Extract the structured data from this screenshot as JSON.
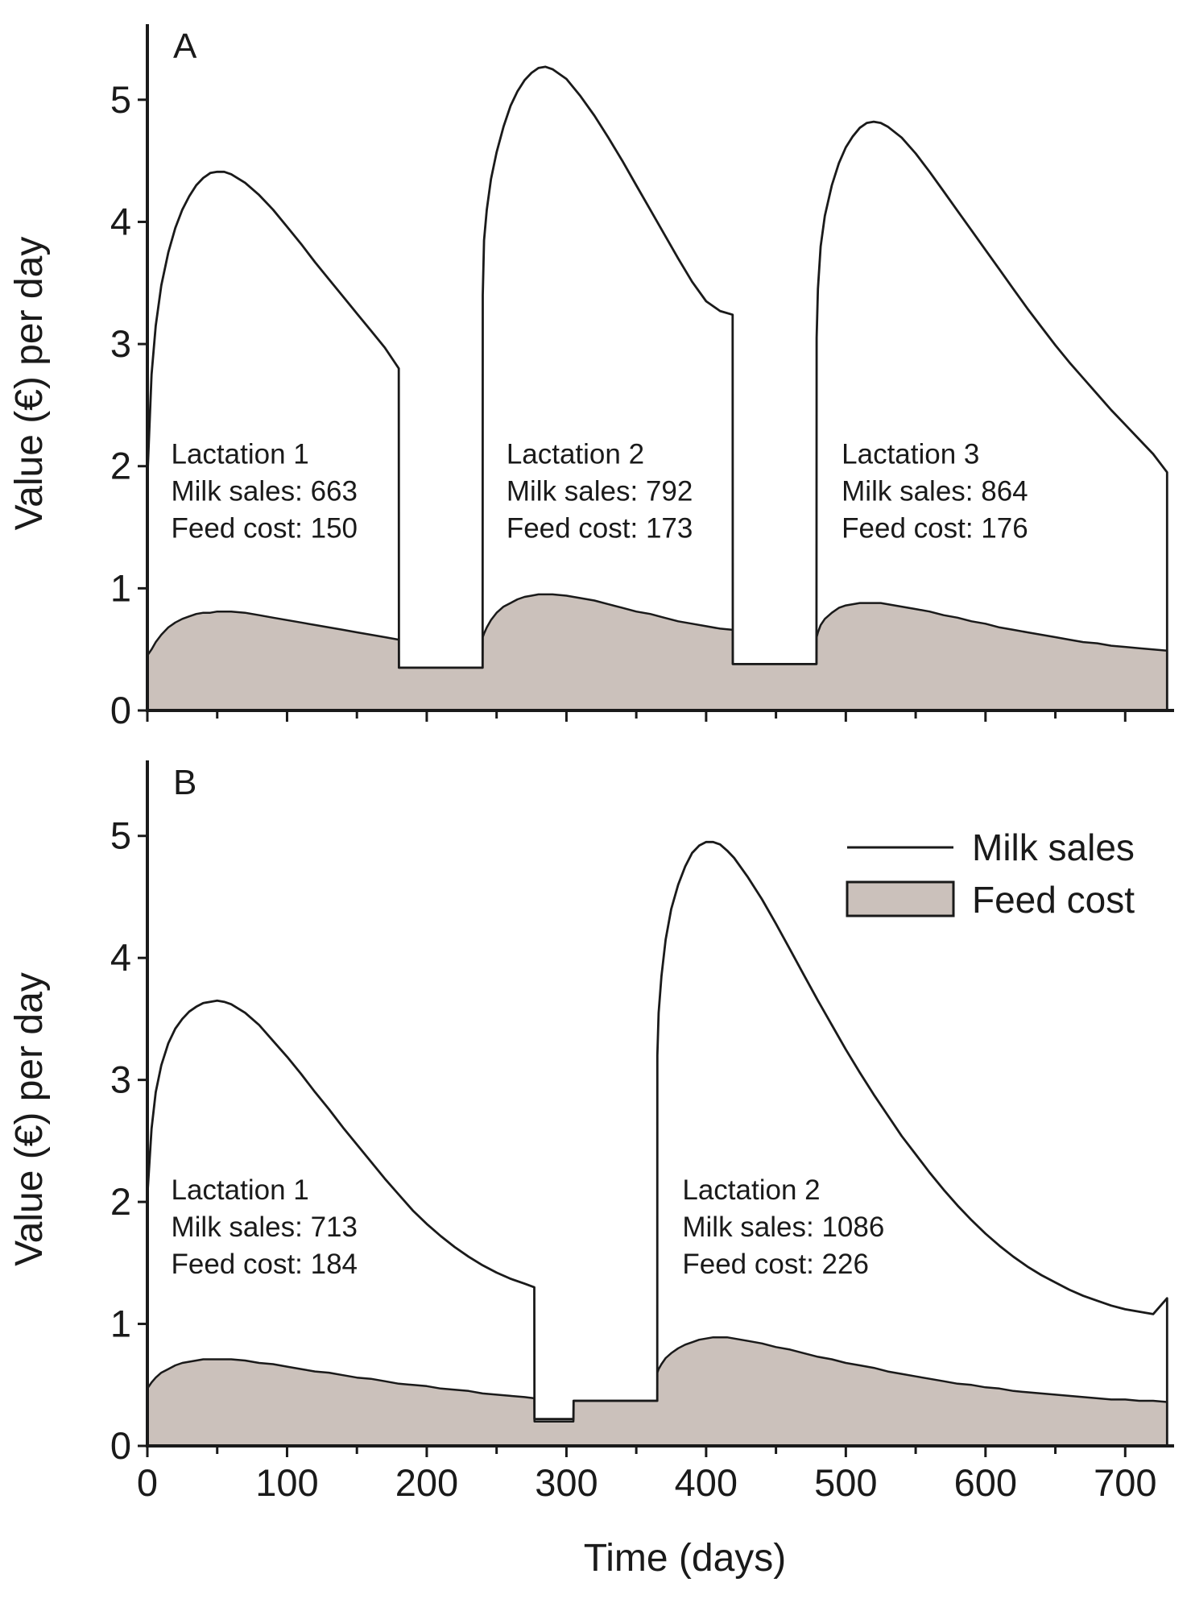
{
  "chart_data": [
    {
      "id": "A",
      "type": "area",
      "panel_label": "A",
      "ylabel": "Value (€) per day",
      "xlabel": "",
      "xlim": [
        0,
        735
      ],
      "ylim": [
        0,
        5.5
      ],
      "y_ticks": [
        "0",
        "1",
        "2",
        "3",
        "4",
        "5"
      ],
      "x_ticks": [
        "0",
        "100",
        "200",
        "300",
        "400",
        "500",
        "600",
        "700"
      ],
      "grid": false,
      "series": [
        {
          "name": "Milk sales",
          "style": "line",
          "x": [
            0,
            3,
            6,
            10,
            15,
            20,
            25,
            30,
            35,
            40,
            45,
            50,
            55,
            60,
            70,
            80,
            90,
            100,
            110,
            120,
            130,
            140,
            150,
            160,
            170,
            180,
            180.1,
            240,
            240.1,
            241,
            243,
            246,
            250,
            255,
            260,
            265,
            270,
            275,
            280,
            285,
            290,
            300,
            310,
            320,
            330,
            340,
            350,
            360,
            370,
            380,
            390,
            400,
            410,
            419,
            419.1,
            479,
            479.1,
            480,
            482,
            485,
            490,
            495,
            500,
            505,
            510,
            515,
            520,
            525,
            530,
            540,
            550,
            560,
            570,
            580,
            590,
            600,
            610,
            620,
            630,
            640,
            650,
            660,
            670,
            680,
            690,
            700,
            710,
            720,
            730
          ],
          "y": [
            1.9,
            2.75,
            3.15,
            3.48,
            3.75,
            3.95,
            4.1,
            4.21,
            4.3,
            4.36,
            4.4,
            4.41,
            4.41,
            4.39,
            4.32,
            4.22,
            4.1,
            3.96,
            3.82,
            3.67,
            3.53,
            3.39,
            3.25,
            3.11,
            2.97,
            2.8,
            0.35,
            0.35,
            3.4,
            3.85,
            4.1,
            4.35,
            4.57,
            4.78,
            4.95,
            5.07,
            5.16,
            5.22,
            5.26,
            5.27,
            5.25,
            5.17,
            5.03,
            4.87,
            4.69,
            4.5,
            4.3,
            4.1,
            3.9,
            3.7,
            3.51,
            3.35,
            3.27,
            3.24,
            0.38,
            0.38,
            3.05,
            3.45,
            3.8,
            4.05,
            4.3,
            4.48,
            4.61,
            4.7,
            4.77,
            4.81,
            4.82,
            4.81,
            4.78,
            4.69,
            4.56,
            4.41,
            4.25,
            4.09,
            3.93,
            3.77,
            3.61,
            3.45,
            3.29,
            3.14,
            2.99,
            2.85,
            2.72,
            2.59,
            2.46,
            2.34,
            2.22,
            2.1,
            1.95
          ]
        },
        {
          "name": "Feed cost",
          "style": "area",
          "fill": "#cbc1bb",
          "x": [
            0,
            3,
            6,
            10,
            15,
            20,
            25,
            30,
            35,
            40,
            45,
            50,
            55,
            60,
            70,
            80,
            90,
            100,
            110,
            120,
            130,
            140,
            150,
            160,
            170,
            180,
            180.1,
            240,
            240.1,
            241,
            243,
            246,
            250,
            255,
            260,
            265,
            270,
            275,
            280,
            285,
            290,
            300,
            310,
            320,
            330,
            340,
            350,
            360,
            370,
            380,
            390,
            400,
            410,
            419,
            419.1,
            479,
            479.1,
            480,
            482,
            485,
            490,
            495,
            500,
            505,
            510,
            515,
            520,
            525,
            530,
            540,
            550,
            560,
            570,
            580,
            590,
            600,
            610,
            620,
            630,
            640,
            650,
            660,
            670,
            680,
            690,
            700,
            710,
            720,
            730
          ],
          "y": [
            0.45,
            0.5,
            0.56,
            0.62,
            0.68,
            0.72,
            0.75,
            0.77,
            0.79,
            0.8,
            0.8,
            0.81,
            0.81,
            0.81,
            0.8,
            0.78,
            0.76,
            0.74,
            0.72,
            0.7,
            0.68,
            0.66,
            0.64,
            0.62,
            0.6,
            0.58,
            0.35,
            0.35,
            0.6,
            0.63,
            0.68,
            0.74,
            0.8,
            0.85,
            0.88,
            0.91,
            0.93,
            0.94,
            0.95,
            0.95,
            0.95,
            0.94,
            0.92,
            0.9,
            0.87,
            0.84,
            0.81,
            0.79,
            0.76,
            0.73,
            0.71,
            0.69,
            0.67,
            0.66,
            0.38,
            0.38,
            0.6,
            0.64,
            0.7,
            0.75,
            0.8,
            0.84,
            0.86,
            0.87,
            0.88,
            0.88,
            0.88,
            0.88,
            0.87,
            0.85,
            0.83,
            0.81,
            0.78,
            0.76,
            0.73,
            0.71,
            0.68,
            0.66,
            0.64,
            0.62,
            0.6,
            0.58,
            0.56,
            0.55,
            0.53,
            0.52,
            0.51,
            0.5,
            0.49
          ]
        }
      ],
      "annotations": [
        {
          "lines": [
            "Lactation 1",
            "Milk sales: 663",
            "Feed cost: 150"
          ],
          "x": 17,
          "y": 2.02
        },
        {
          "lines": [
            "Lactation 2",
            "Milk sales: 792",
            "Feed cost: 173"
          ],
          "x": 257,
          "y": 2.02
        },
        {
          "lines": [
            "Lactation 3",
            "Milk sales: 864",
            "Feed cost: 176"
          ],
          "x": 497,
          "y": 2.02
        }
      ]
    },
    {
      "id": "B",
      "type": "area",
      "panel_label": "B",
      "ylabel": "Value (€) per day",
      "xlabel": "Time (days)",
      "xlim": [
        0,
        735
      ],
      "ylim": [
        0,
        5.5
      ],
      "y_ticks": [
        "0",
        "1",
        "2",
        "3",
        "4",
        "5"
      ],
      "x_ticks": [
        "0",
        "100",
        "200",
        "300",
        "400",
        "500",
        "600",
        "700"
      ],
      "grid": false,
      "legend": {
        "position": "top-right",
        "entries": [
          {
            "label": "Milk sales",
            "kind": "line"
          },
          {
            "label": "Feed cost",
            "kind": "patch"
          }
        ]
      },
      "series": [
        {
          "name": "Milk sales",
          "style": "line",
          "x": [
            0,
            3,
            6,
            10,
            15,
            20,
            25,
            30,
            35,
            40,
            45,
            50,
            55,
            60,
            70,
            80,
            90,
            100,
            110,
            120,
            130,
            140,
            150,
            160,
            170,
            180,
            190,
            200,
            210,
            220,
            230,
            240,
            250,
            260,
            270,
            277,
            277.1,
            305,
            305.1,
            365,
            365.1,
            366,
            368,
            371,
            375,
            380,
            385,
            390,
            395,
            400,
            405,
            410,
            415,
            420,
            430,
            440,
            450,
            460,
            470,
            480,
            490,
            500,
            510,
            520,
            530,
            540,
            550,
            560,
            570,
            580,
            590,
            600,
            610,
            620,
            630,
            640,
            650,
            660,
            670,
            680,
            690,
            700,
            710,
            720,
            730
          ],
          "y": [
            2.05,
            2.6,
            2.9,
            3.12,
            3.3,
            3.42,
            3.5,
            3.56,
            3.6,
            3.63,
            3.64,
            3.65,
            3.64,
            3.62,
            3.55,
            3.45,
            3.32,
            3.19,
            3.05,
            2.9,
            2.76,
            2.61,
            2.47,
            2.33,
            2.19,
            2.06,
            1.93,
            1.82,
            1.72,
            1.63,
            1.55,
            1.48,
            1.42,
            1.37,
            1.33,
            1.3,
            0.22,
            0.22,
            0.37,
            0.37,
            3.2,
            3.55,
            3.85,
            4.15,
            4.4,
            4.6,
            4.75,
            4.86,
            4.92,
            4.95,
            4.95,
            4.93,
            4.88,
            4.82,
            4.66,
            4.48,
            4.28,
            4.07,
            3.86,
            3.65,
            3.45,
            3.25,
            3.06,
            2.88,
            2.71,
            2.54,
            2.39,
            2.24,
            2.1,
            1.97,
            1.85,
            1.74,
            1.64,
            1.55,
            1.47,
            1.4,
            1.34,
            1.28,
            1.23,
            1.19,
            1.15,
            1.12,
            1.1,
            1.08,
            1.21
          ]
        },
        {
          "name": "Feed cost",
          "style": "area",
          "fill": "#cbc1bb",
          "x": [
            0,
            3,
            6,
            10,
            15,
            20,
            25,
            30,
            35,
            40,
            45,
            50,
            55,
            60,
            70,
            80,
            90,
            100,
            110,
            120,
            130,
            140,
            150,
            160,
            170,
            180,
            190,
            200,
            210,
            220,
            230,
            240,
            250,
            260,
            270,
            277,
            277.1,
            305,
            305.1,
            365,
            365.1,
            366,
            368,
            371,
            375,
            380,
            385,
            390,
            395,
            400,
            405,
            410,
            415,
            420,
            430,
            440,
            450,
            460,
            470,
            480,
            490,
            500,
            510,
            520,
            530,
            540,
            550,
            560,
            570,
            580,
            590,
            600,
            610,
            620,
            630,
            640,
            650,
            660,
            670,
            680,
            690,
            700,
            710,
            720,
            730
          ],
          "y": [
            0.47,
            0.52,
            0.56,
            0.6,
            0.63,
            0.66,
            0.68,
            0.69,
            0.7,
            0.71,
            0.71,
            0.71,
            0.71,
            0.71,
            0.7,
            0.68,
            0.67,
            0.65,
            0.63,
            0.61,
            0.6,
            0.58,
            0.56,
            0.55,
            0.53,
            0.51,
            0.5,
            0.49,
            0.47,
            0.46,
            0.45,
            0.43,
            0.42,
            0.41,
            0.4,
            0.39,
            0.2,
            0.2,
            0.37,
            0.37,
            0.6,
            0.63,
            0.67,
            0.72,
            0.76,
            0.8,
            0.83,
            0.85,
            0.87,
            0.88,
            0.89,
            0.89,
            0.89,
            0.88,
            0.86,
            0.84,
            0.81,
            0.79,
            0.76,
            0.73,
            0.71,
            0.68,
            0.66,
            0.64,
            0.61,
            0.59,
            0.57,
            0.55,
            0.53,
            0.51,
            0.5,
            0.48,
            0.47,
            0.45,
            0.44,
            0.43,
            0.42,
            0.41,
            0.4,
            0.39,
            0.38,
            0.38,
            0.37,
            0.37,
            0.36
          ]
        }
      ],
      "annotations": [
        {
          "lines": [
            "Lactation 1",
            "Milk sales: 713",
            "Feed cost: 184"
          ],
          "x": 17,
          "y": 2.02
        },
        {
          "lines": [
            "Lactation 2",
            "Milk sales: 1086",
            "Feed cost: 226"
          ],
          "x": 383,
          "y": 2.02
        }
      ]
    }
  ]
}
